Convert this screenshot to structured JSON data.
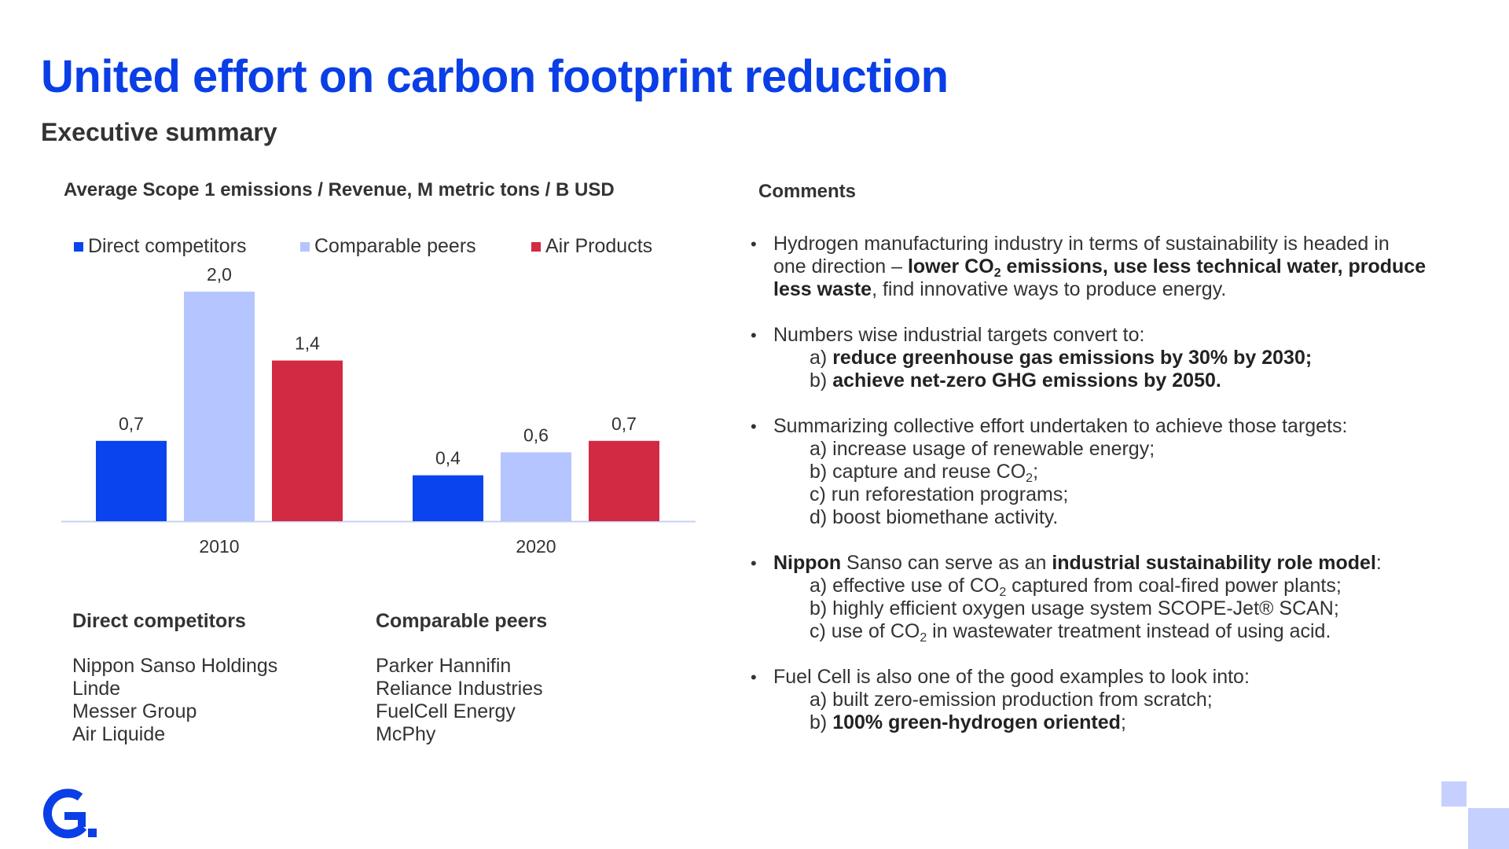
{
  "header": {
    "title": "United effort on carbon footprint reduction",
    "subtitle": "Executive summary"
  },
  "chart_data": {
    "type": "bar",
    "title": "Average Scope 1 emissions / Revenue, M metric tons / B USD",
    "categories": [
      "2010",
      "2020"
    ],
    "series": [
      {
        "name": "Direct competitors",
        "values": [
          0.7,
          0.4
        ],
        "labels": [
          "0,7",
          "0,4"
        ],
        "color": "#0a44ee"
      },
      {
        "name": "Comparable peers",
        "values": [
          2.0,
          0.6
        ],
        "labels": [
          "2,0",
          "0,6"
        ],
        "color": "#b4c5ff"
      },
      {
        "name": "Air Products",
        "values": [
          1.4,
          0.7
        ],
        "labels": [
          "1,4",
          "0,7"
        ],
        "color": "#d22a42"
      }
    ],
    "ylim": [
      0,
      2.0
    ],
    "legend": "top",
    "grid": false
  },
  "lists": {
    "direct": {
      "header": "Direct competitors",
      "items": [
        "Nippon Sanso Holdings",
        "Linde",
        "Messer Group",
        "Air Liquide"
      ]
    },
    "peers": {
      "header": "Comparable peers",
      "items": [
        "Parker Hannifin",
        "Reliance Industries",
        "FuelCell Energy",
        "McPhy"
      ]
    }
  },
  "comments": {
    "title": "Comments",
    "bullets": [
      {
        "lines": [
          [
            {
              "t": "Hydrogen manufacturing industry in terms of sustainability is headed in"
            }
          ],
          [
            {
              "t": "one direction – "
            },
            {
              "t": "lower CO",
              "b": true
            },
            {
              "t": "2",
              "b": true,
              "sub": true
            },
            {
              "t": " emissions, use less technical water, produce",
              "b": true
            }
          ],
          [
            {
              "t": "less waste",
              "b": true
            },
            {
              "t": ", find innovative ways to produce energy."
            }
          ]
        ]
      },
      {
        "lines": [
          [
            {
              "t": "Numbers wise industrial targets convert to:"
            }
          ]
        ],
        "subs": [
          [
            {
              "t": "a) "
            },
            {
              "t": "reduce greenhouse gas emissions by 30% by 2030;",
              "b": true
            }
          ],
          [
            {
              "t": "b) "
            },
            {
              "t": "achieve net-zero GHG emissions by 2050.",
              "b": true
            }
          ]
        ]
      },
      {
        "lines": [
          [
            {
              "t": "Summarizing collective effort undertaken to achieve those targets:"
            }
          ]
        ],
        "subs": [
          [
            {
              "t": "a) increase usage of renewable energy;"
            }
          ],
          [
            {
              "t": "b) capture and reuse CO"
            },
            {
              "t": "2",
              "sub": true
            },
            {
              "t": ";"
            }
          ],
          [
            {
              "t": "c) run reforestation programs;"
            }
          ],
          [
            {
              "t": "d) boost biomethane activity."
            }
          ]
        ]
      },
      {
        "lines": [
          [
            {
              "t": "Nippon",
              "b": true
            },
            {
              "t": " Sanso can serve as an "
            },
            {
              "t": "industrial sustainability role model",
              "b": true
            },
            {
              "t": ":"
            }
          ]
        ],
        "subs": [
          [
            {
              "t": "a) effective use of CO"
            },
            {
              "t": "2",
              "sub": true
            },
            {
              "t": " captured from coal-fired power plants;"
            }
          ],
          [
            {
              "t": "b) highly efficient oxygen usage system SCOPE-Jet® SCAN;"
            }
          ],
          [
            {
              "t": "c) use of CO"
            },
            {
              "t": "2",
              "sub": true
            },
            {
              "t": " in wastewater treatment instead of using acid."
            }
          ]
        ]
      },
      {
        "lines": [
          [
            {
              "t": "Fuel Cell  is also one of the good examples to look into:"
            }
          ]
        ],
        "subs": [
          [
            {
              "t": "a) built zero-emission production from scratch;"
            }
          ],
          [
            {
              "t": "b) "
            },
            {
              "t": "100% green-hydrogen oriented",
              "b": true
            },
            {
              "t": ";"
            }
          ]
        ]
      }
    ]
  },
  "colors": {
    "accent": "#0a3ee6",
    "text": "#333333",
    "deco": "#c6d0ff"
  },
  "icons": {
    "logo": "company-logo-g-icon",
    "bullet": "bullet-dot"
  }
}
